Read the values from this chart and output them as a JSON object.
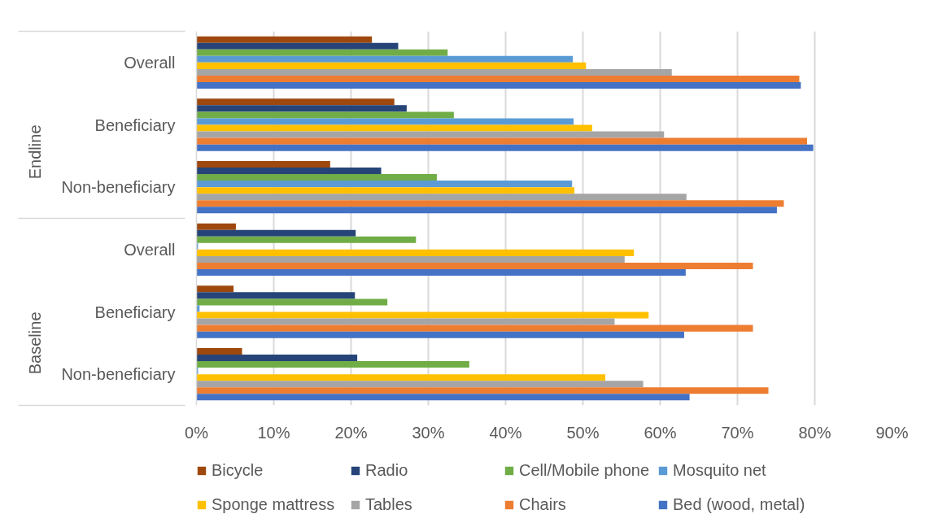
{
  "chart_data": {
    "type": "bar",
    "orientation": "horizontal",
    "categories": [
      "Overall",
      "Beneficiary",
      "Non-beneficiary",
      "Overall",
      "Beneficiary",
      "Non-beneficiary"
    ],
    "annotations": [
      "Endline",
      "Baseline"
    ],
    "series": [
      {
        "name": "Bicycle",
        "color": "#9e480e",
        "values": [
          22.7,
          25.6,
          17.3,
          5.1,
          4.8,
          5.9
        ]
      },
      {
        "name": "Radio",
        "color": "#264478",
        "values": [
          26.1,
          27.2,
          23.9,
          20.6,
          20.5,
          20.8
        ]
      },
      {
        "name": "Cell/Mobile phone",
        "color": "#70ad47",
        "values": [
          32.5,
          33.3,
          31.1,
          28.4,
          24.7,
          35.3
        ]
      },
      {
        "name": "Mosquito net",
        "color": "#5b9bd5",
        "values": [
          48.7,
          48.8,
          48.6,
          0.2,
          0.4,
          0.2
        ]
      },
      {
        "name": "Sponge mattress",
        "color": "#ffc000",
        "values": [
          50.4,
          51.2,
          48.9,
          56.6,
          58.5,
          52.9
        ]
      },
      {
        "name": "Tables",
        "color": "#a5a5a5",
        "values": [
          61.5,
          60.5,
          63.4,
          55.4,
          54.1,
          57.8
        ]
      },
      {
        "name": "Chairs",
        "color": "#ed7d31",
        "values": [
          78.0,
          79.0,
          76.0,
          72.0,
          72.0,
          74.0
        ]
      },
      {
        "name": "Bed (wood, metal)",
        "color": "#4472c4",
        "values": [
          78.2,
          79.8,
          75.1,
          63.3,
          63.1,
          63.8
        ]
      }
    ],
    "xlim": [
      0,
      90
    ],
    "xticks": [
      {
        "value": 0,
        "label": "0%"
      },
      {
        "value": 10,
        "label": "10%"
      },
      {
        "value": 20,
        "label": "20%"
      },
      {
        "value": 30,
        "label": "30%"
      },
      {
        "value": 40,
        "label": "40%"
      },
      {
        "value": 50,
        "label": "50%"
      },
      {
        "value": 60,
        "label": "60%"
      },
      {
        "value": 70,
        "label": "70%"
      },
      {
        "value": 80,
        "label": "80%"
      },
      {
        "value": 90,
        "label": "90%"
      }
    ],
    "grid": "x",
    "legend": "bottom"
  }
}
